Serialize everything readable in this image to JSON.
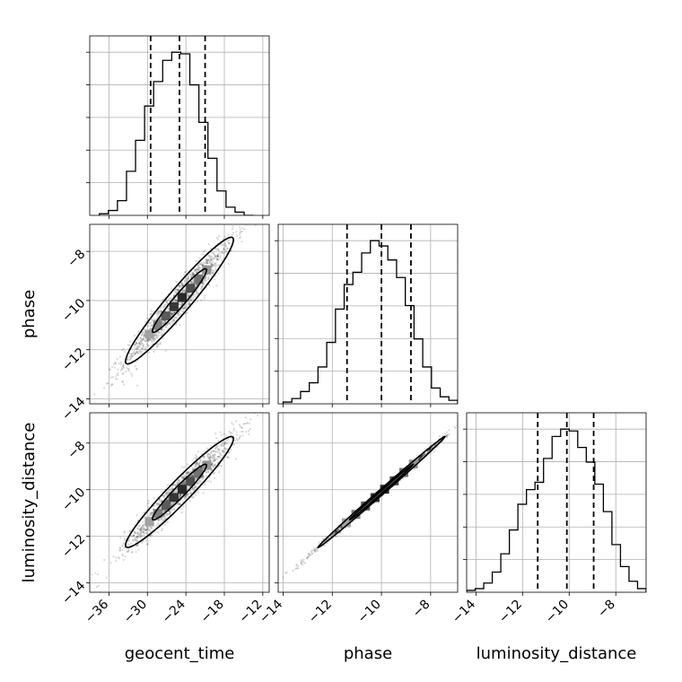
{
  "chart_data": {
    "type": "corner",
    "parameters": [
      "geocent_time",
      "phase",
      "luminosity_distance"
    ],
    "axis_labels": {
      "x": [
        "geocent_time",
        "phase",
        "luminosity_distance"
      ],
      "y": [
        "",
        "phase",
        "luminosity_distance"
      ]
    },
    "ranges": {
      "geocent_time": [
        -39,
        -11
      ],
      "phase": [
        -14.2,
        -6.9
      ],
      "luminosity_distance": [
        -14.4,
        -6.7
      ]
    },
    "ticks": {
      "geocent_time": {
        "values": [
          -36,
          -30,
          -24,
          -18,
          -12
        ],
        "labels": [
          "−36",
          "−30",
          "−24",
          "−18",
          "−12"
        ]
      },
      "phase": {
        "values": [
          -14,
          -12,
          -10,
          -8
        ],
        "labels": [
          "−14",
          "−12",
          "−10",
          "−8"
        ]
      },
      "luminosity_distance": {
        "values": [
          -14,
          -12,
          -10,
          -8
        ],
        "labels": [
          "−14",
          "−12",
          "−10",
          "−8"
        ]
      }
    },
    "quantiles": {
      "geocent_time": [
        -29.5,
        -25.0,
        -21.0
      ],
      "phase": [
        -11.4,
        -10.0,
        -8.8
      ],
      "luminosity_distance": [
        -11.35,
        -10.1,
        -8.95
      ]
    },
    "histograms": {
      "geocent_time": {
        "edges_range": [
          -37.5,
          -13.5
        ],
        "counts": [
          1,
          3,
          9,
          27,
          46,
          67,
          82,
          95,
          100,
          99,
          80,
          57,
          35,
          15,
          5,
          2,
          0
        ]
      },
      "phase": {
        "edges_range": [
          -14.0,
          -6.9
        ],
        "counts": [
          1,
          3,
          7,
          12,
          21,
          35,
          54,
          68,
          75,
          86,
          93,
          90,
          82,
          72,
          56,
          37,
          21,
          9,
          4,
          2
        ]
      },
      "luminosity_distance": {
        "edges_range": [
          -14.4,
          -6.7
        ],
        "counts": [
          1,
          2,
          5,
          11,
          21,
          34,
          48,
          56,
          60,
          73,
          85,
          89,
          88,
          79,
          71,
          59,
          44,
          26,
          14,
          6,
          2
        ]
      }
    },
    "pairs": [
      {
        "x": "geocent_time",
        "y": "phase",
        "correlation": 0.96
      },
      {
        "x": "geocent_time",
        "y": "luminosity_distance",
        "correlation": 0.96
      },
      {
        "x": "phase",
        "y": "luminosity_distance",
        "correlation": 0.998
      }
    ],
    "contour_levels": [
      0.39,
      0.86
    ],
    "grid": true,
    "color": "#000000"
  }
}
